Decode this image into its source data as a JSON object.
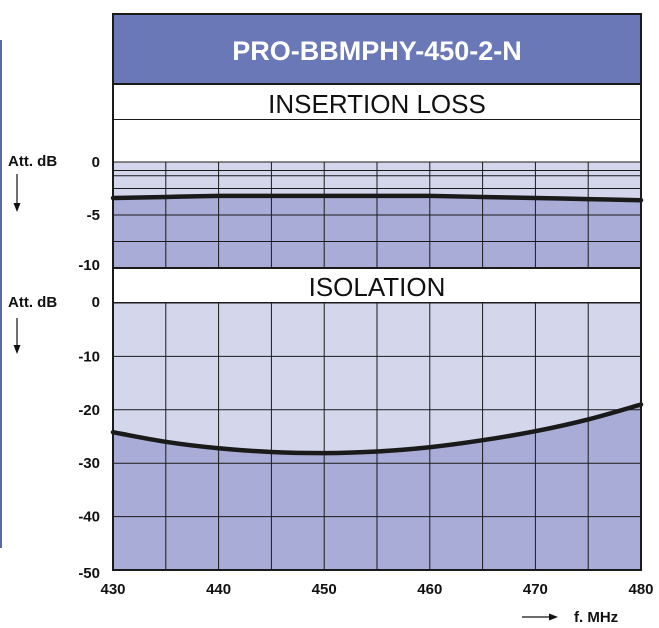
{
  "chart_data": {
    "type": "line",
    "title": "PRO-BBMPHY-450-2-N",
    "xlabel": "f. MHz",
    "xlim": [
      430,
      480
    ],
    "x_ticks": [
      "430",
      "440",
      "450",
      "460",
      "470",
      "480"
    ],
    "panels": [
      {
        "title": "INSERTION LOSS",
        "ylabel": "Att. dB",
        "ylim": [
          -10,
          0
        ],
        "y_ticks": [
          "0",
          "-5",
          "-10"
        ],
        "series": [
          {
            "x": [
              430,
              435,
              440,
              445,
              450,
              455,
              460,
              465,
              470,
              475,
              480
            ],
            "y": [
              -3.4,
              -3.3,
              -3.2,
              -3.2,
              -3.2,
              -3.2,
              -3.2,
              -3.3,
              -3.4,
              -3.5,
              -3.6
            ]
          }
        ]
      },
      {
        "title": "ISOLATION",
        "ylabel": "Att. dB",
        "ylim": [
          -50,
          0
        ],
        "y_ticks": [
          "0",
          "-10",
          "-20",
          "-30",
          "-40",
          "-50"
        ],
        "series": [
          {
            "x": [
              430,
              435,
              440,
              445,
              450,
              455,
              460,
              465,
              470,
              475,
              480
            ],
            "y": [
              -24.2,
              -26.0,
              -27.2,
              -27.9,
              -28.1,
              -27.8,
              -27.0,
              -25.7,
              -24.0,
              -21.8,
              -19.0
            ]
          }
        ]
      }
    ],
    "colors": {
      "title_band": "#6a78b8",
      "light_fill": "#d4d7ec",
      "dark_fill": "#a9acd6",
      "grid": "#1a1a1a",
      "curve": "#1a1a1a"
    },
    "grid": true
  }
}
